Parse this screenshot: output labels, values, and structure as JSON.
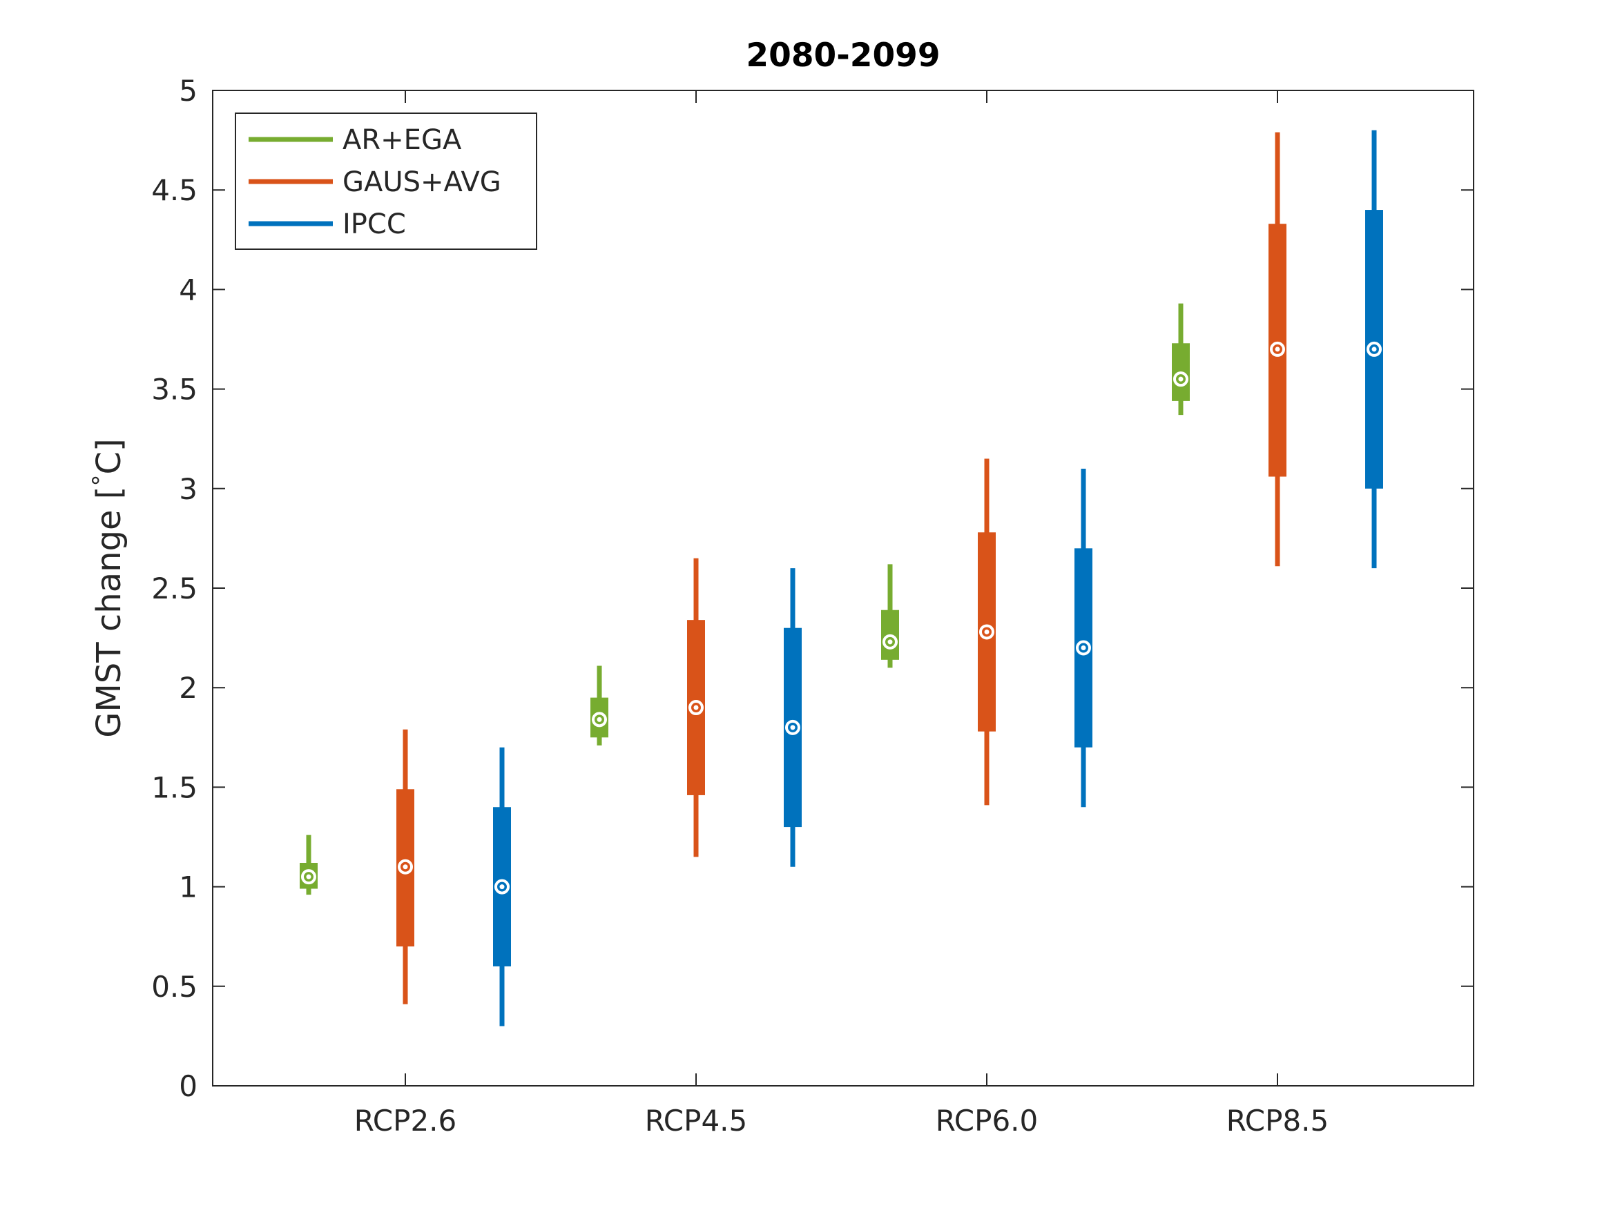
{
  "chart_data": {
    "type": "boxplot",
    "title": "2080-2099",
    "ylabel_prefix": "GMST change [",
    "ylabel_degree": "°",
    "ylabel_unit": "C]",
    "ylabel": "GMST change [°C]",
    "xlabel": "",
    "ylim": [
      0,
      5
    ],
    "yticks": [
      0,
      0.5,
      1,
      1.5,
      2,
      2.5,
      3,
      3.5,
      4,
      4.5,
      5
    ],
    "ytick_labels": [
      "0",
      "0.5",
      "1",
      "1.5",
      "2",
      "2.5",
      "3",
      "3.5",
      "4",
      "4.5",
      "5"
    ],
    "categories": [
      "RCP2.6",
      "RCP4.5",
      "RCP6.0",
      "RCP8.5"
    ],
    "legend_position": "top-left",
    "series": [
      {
        "name": "AR+EGA",
        "color": "#77AC30",
        "stats": [
          {
            "low": 0.96,
            "q1": 0.99,
            "median": 1.05,
            "q3": 1.12,
            "high": 1.26
          },
          {
            "low": 1.71,
            "q1": 1.75,
            "median": 1.84,
            "q3": 1.95,
            "high": 2.11
          },
          {
            "low": 2.1,
            "q1": 2.14,
            "median": 2.23,
            "q3": 2.39,
            "high": 2.62
          },
          {
            "low": 3.37,
            "q1": 3.44,
            "median": 3.55,
            "q3": 3.73,
            "high": 3.93
          }
        ]
      },
      {
        "name": "GAUS+AVG",
        "color": "#D95319",
        "stats": [
          {
            "low": 0.41,
            "q1": 0.7,
            "median": 1.1,
            "q3": 1.49,
            "high": 1.79
          },
          {
            "low": 1.15,
            "q1": 1.46,
            "median": 1.9,
            "q3": 2.34,
            "high": 2.65
          },
          {
            "low": 1.41,
            "q1": 1.78,
            "median": 2.28,
            "q3": 2.78,
            "high": 3.15
          },
          {
            "low": 2.61,
            "q1": 3.06,
            "median": 3.7,
            "q3": 4.33,
            "high": 4.79
          }
        ]
      },
      {
        "name": "IPCC",
        "color": "#0072BD",
        "stats": [
          {
            "low": 0.3,
            "q1": 0.6,
            "median": 1.0,
            "q3": 1.4,
            "high": 1.7
          },
          {
            "low": 1.1,
            "q1": 1.3,
            "median": 1.8,
            "q3": 2.3,
            "high": 2.6
          },
          {
            "low": 1.4,
            "q1": 1.7,
            "median": 2.2,
            "q3": 2.7,
            "high": 3.1
          },
          {
            "low": 2.6,
            "q1": 3.0,
            "median": 3.7,
            "q3": 4.4,
            "high": 4.8
          }
        ]
      }
    ]
  }
}
